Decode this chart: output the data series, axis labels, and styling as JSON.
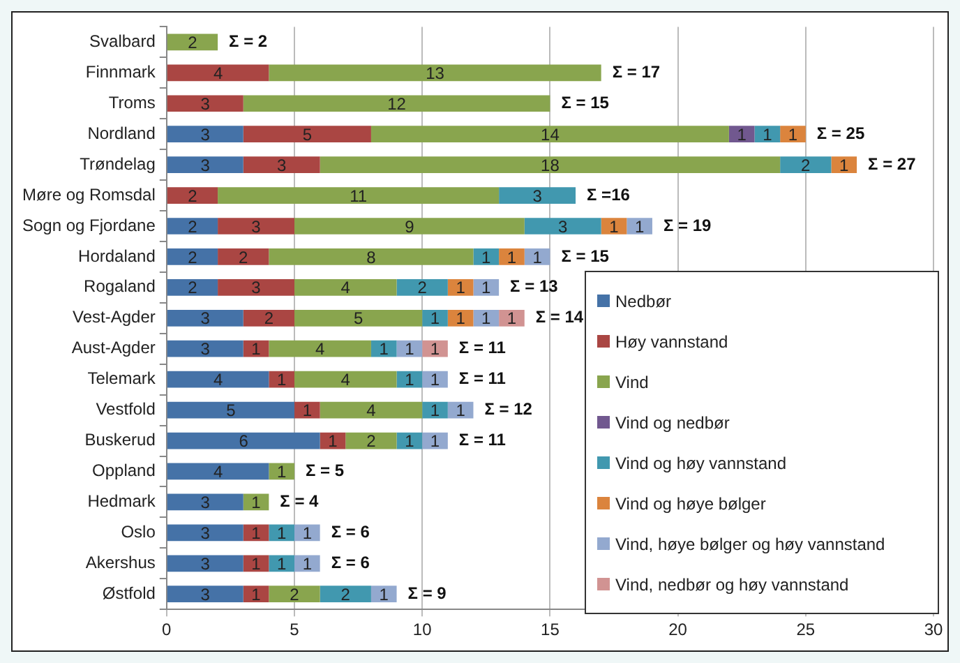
{
  "chart_data": {
    "type": "bar",
    "orientation": "horizontal",
    "stacked": true,
    "categories": [
      "Svalbard",
      "Finnmark",
      "Troms",
      "Nordland",
      "Trøndelag",
      "Møre og Romsdal",
      "Sogn og Fjordane",
      "Hordaland",
      "Rogaland",
      "Vest-Agder",
      "Aust-Agder",
      "Telemark",
      "Vestfold",
      "Buskerud",
      "Oppland",
      "Hedmark",
      "Oslo",
      "Akershus",
      "Østfold"
    ],
    "series": [
      {
        "name": "Nedbør",
        "color": "#4572a7",
        "values": [
          null,
          null,
          null,
          3,
          3,
          null,
          2,
          2,
          2,
          3,
          3,
          4,
          5,
          6,
          4,
          3,
          3,
          3,
          3
        ]
      },
      {
        "name": "Høy vannstand",
        "color": "#aa4643",
        "values": [
          null,
          4,
          3,
          5,
          3,
          2,
          3,
          2,
          3,
          2,
          1,
          1,
          1,
          1,
          null,
          null,
          1,
          1,
          1
        ]
      },
      {
        "name": "Vind",
        "color": "#89a54e",
        "values": [
          2,
          13,
          12,
          14,
          18,
          11,
          9,
          8,
          4,
          5,
          4,
          4,
          4,
          2,
          1,
          1,
          null,
          null,
          2
        ]
      },
      {
        "name": "Vind og nedbør",
        "color": "#71588f",
        "values": [
          null,
          null,
          null,
          1,
          null,
          null,
          null,
          null,
          null,
          null,
          null,
          null,
          null,
          null,
          null,
          null,
          null,
          null,
          null
        ]
      },
      {
        "name": "Vind og høy vannstand",
        "color": "#4198af",
        "values": [
          null,
          null,
          null,
          1,
          2,
          3,
          3,
          1,
          2,
          1,
          1,
          1,
          1,
          1,
          null,
          null,
          1,
          1,
          2
        ]
      },
      {
        "name": "Vind og høye bølger",
        "color": "#db843d",
        "values": [
          null,
          null,
          null,
          1,
          1,
          null,
          1,
          1,
          1,
          1,
          null,
          null,
          null,
          null,
          null,
          null,
          null,
          null,
          null
        ]
      },
      {
        "name": "Vind, høye bølger og høy vannstand",
        "color": "#93a9cf",
        "values": [
          null,
          null,
          null,
          null,
          null,
          null,
          1,
          1,
          1,
          1,
          1,
          1,
          1,
          1,
          null,
          null,
          1,
          1,
          1
        ]
      },
      {
        "name": "Vind, nedbør og høy vannstand",
        "color": "#d19392",
        "values": [
          null,
          null,
          null,
          null,
          null,
          null,
          null,
          null,
          null,
          1,
          1,
          null,
          null,
          null,
          null,
          null,
          null,
          null,
          null
        ]
      }
    ],
    "totals": [
      "Σ = 2",
      "Σ = 17",
      "Σ = 15",
      "Σ = 25",
      "Σ = 27",
      "Σ =16",
      "Σ = 19",
      "Σ = 15",
      "Σ = 13",
      "Σ = 14",
      "Σ = 11",
      "Σ = 11",
      "Σ = 12",
      "Σ = 11",
      "Σ = 5",
      "Σ = 4",
      "Σ = 6",
      "Σ = 6",
      "Σ = 9"
    ],
    "data_labels": true,
    "xlim": [
      0,
      30
    ],
    "xticks": [
      0,
      5,
      10,
      15,
      20,
      25,
      30
    ],
    "grid": "x",
    "legend": "bottom right"
  }
}
